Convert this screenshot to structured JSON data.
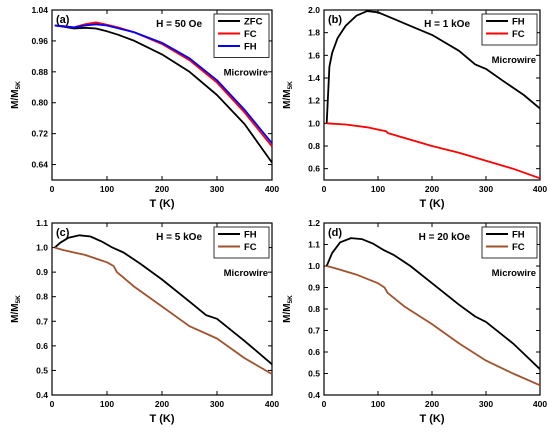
{
  "chart_data": [
    {
      "type": "line",
      "panel_label": "(a)",
      "field_label": "H = 50 Oe",
      "annotation": "Microwire",
      "xlabel": "T (K)",
      "ylabel": "M/M5K",
      "xlim": [
        0,
        400
      ],
      "ylim": [
        0.6,
        1.04
      ],
      "xticks": [
        0,
        100,
        200,
        300,
        400
      ],
      "yticks": [
        0.64,
        0.72,
        0.8,
        0.88,
        0.96,
        1.04
      ],
      "ytick_labels": [
        "0.64",
        "0.72",
        "0.80",
        "0.88",
        "0.96",
        "1.04"
      ],
      "legend_position": "top-right",
      "series": [
        {
          "name": "ZFC",
          "color": "#000000",
          "x": [
            5,
            20,
            40,
            60,
            80,
            100,
            120,
            150,
            200,
            250,
            300,
            350,
            400
          ],
          "y": [
            1.0,
            0.997,
            0.992,
            0.994,
            0.992,
            0.985,
            0.976,
            0.96,
            0.925,
            0.88,
            0.82,
            0.745,
            0.645
          ]
        },
        {
          "name": "FC",
          "color": "#ff0000",
          "x": [
            5,
            20,
            40,
            60,
            80,
            100,
            120,
            150,
            200,
            250,
            300,
            350,
            400
          ],
          "y": [
            1.0,
            0.998,
            0.995,
            1.003,
            1.008,
            1.002,
            0.995,
            0.982,
            0.952,
            0.91,
            0.852,
            0.775,
            0.687
          ]
        },
        {
          "name": "FH",
          "color": "#0000ff",
          "x": [
            5,
            20,
            40,
            60,
            80,
            100,
            120,
            150,
            200,
            250,
            300,
            350,
            400
          ],
          "y": [
            1.0,
            0.998,
            0.995,
            1.0,
            1.003,
            1.0,
            0.993,
            0.982,
            0.955,
            0.915,
            0.858,
            0.782,
            0.695
          ]
        }
      ]
    },
    {
      "type": "line",
      "panel_label": "(b)",
      "field_label": "H = 1 kOe",
      "annotation": "Microwire",
      "xlabel": "T (K)",
      "ylabel": "M/M5K",
      "xlim": [
        0,
        400
      ],
      "ylim": [
        0.5,
        2.0
      ],
      "xticks": [
        0,
        100,
        200,
        300,
        400
      ],
      "yticks": [
        0.6,
        0.8,
        1.0,
        1.2,
        1.4,
        1.6,
        1.8,
        2.0
      ],
      "ytick_labels": [
        "0.6",
        "0.8",
        "1.0",
        "1.2",
        "1.4",
        "1.6",
        "1.8",
        "2.0"
      ],
      "legend_position": "top-right",
      "series": [
        {
          "name": "FH",
          "color": "#000000",
          "x": [
            5,
            10,
            15,
            25,
            40,
            60,
            80,
            100,
            130,
            160,
            200,
            250,
            280,
            300,
            330,
            370,
            400
          ],
          "y": [
            1.0,
            1.5,
            1.62,
            1.75,
            1.86,
            1.95,
            1.99,
            1.98,
            1.92,
            1.86,
            1.78,
            1.64,
            1.52,
            1.48,
            1.38,
            1.25,
            1.13
          ]
        },
        {
          "name": "FC",
          "color": "#ff0000",
          "x": [
            5,
            40,
            80,
            115,
            118,
            150,
            200,
            250,
            300,
            350,
            400
          ],
          "y": [
            1.0,
            0.99,
            0.965,
            0.93,
            0.915,
            0.87,
            0.8,
            0.74,
            0.67,
            0.6,
            0.515
          ]
        }
      ]
    },
    {
      "type": "line",
      "panel_label": "(c)",
      "field_label": "H = 5 kOe",
      "annotation": "Microwire",
      "xlabel": "T (K)",
      "ylabel": "M/M5K",
      "xlim": [
        0,
        400
      ],
      "ylim": [
        0.4,
        1.1
      ],
      "xticks": [
        0,
        100,
        200,
        300,
        400
      ],
      "yticks": [
        0.4,
        0.5,
        0.6,
        0.7,
        0.8,
        0.9,
        1.0,
        1.1
      ],
      "ytick_labels": [
        "0.4",
        "0.5",
        "0.6",
        "0.7",
        "0.8",
        "0.9",
        "1.0",
        "1.1"
      ],
      "legend_position": "top-right",
      "series": [
        {
          "name": "FH",
          "color": "#000000",
          "x": [
            5,
            15,
            30,
            50,
            70,
            90,
            110,
            130,
            160,
            200,
            250,
            280,
            300,
            350,
            400
          ],
          "y": [
            1.0,
            1.02,
            1.04,
            1.05,
            1.045,
            1.025,
            1.0,
            0.98,
            0.935,
            0.87,
            0.78,
            0.725,
            0.71,
            0.62,
            0.525
          ]
        },
        {
          "name": "FC",
          "color": "#a0522d",
          "x": [
            5,
            20,
            40,
            60,
            80,
            100,
            112,
            118,
            150,
            200,
            250,
            300,
            350,
            400
          ],
          "y": [
            1.0,
            0.99,
            0.98,
            0.97,
            0.955,
            0.94,
            0.925,
            0.9,
            0.84,
            0.76,
            0.68,
            0.63,
            0.55,
            0.485
          ]
        }
      ]
    },
    {
      "type": "line",
      "panel_label": "(d)",
      "field_label": "H = 20 kOe",
      "annotation": "Microwire",
      "xlabel": "T (K)",
      "ylabel": "M/M5K",
      "xlim": [
        0,
        400
      ],
      "ylim": [
        0.4,
        1.2
      ],
      "xticks": [
        0,
        100,
        200,
        300,
        400
      ],
      "yticks": [
        0.4,
        0.5,
        0.6,
        0.7,
        0.8,
        0.9,
        1.0,
        1.1,
        1.2
      ],
      "ytick_labels": [
        "0.4",
        "0.5",
        "0.6",
        "0.7",
        "0.8",
        "0.9",
        "1.0",
        "1.1",
        "1.2"
      ],
      "legend_position": "top-right",
      "series": [
        {
          "name": "FH",
          "color": "#000000",
          "x": [
            5,
            15,
            30,
            50,
            70,
            90,
            110,
            130,
            160,
            200,
            250,
            280,
            300,
            350,
            400
          ],
          "y": [
            1.0,
            1.06,
            1.11,
            1.13,
            1.125,
            1.105,
            1.075,
            1.05,
            1.0,
            0.92,
            0.82,
            0.765,
            0.74,
            0.64,
            0.52
          ]
        },
        {
          "name": "FC",
          "color": "#a0522d",
          "x": [
            5,
            20,
            40,
            60,
            80,
            100,
            112,
            118,
            150,
            200,
            250,
            300,
            350,
            400
          ],
          "y": [
            1.0,
            0.99,
            0.975,
            0.96,
            0.94,
            0.92,
            0.9,
            0.875,
            0.81,
            0.73,
            0.64,
            0.56,
            0.5,
            0.445
          ]
        }
      ]
    }
  ]
}
